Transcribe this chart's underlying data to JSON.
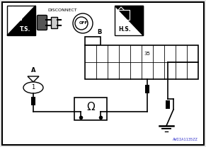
{
  "bg_color": "#e8e8e8",
  "white": "#ffffff",
  "black": "#000000",
  "gray": "#999999",
  "title_code": "AWIIA1135ZZ",
  "ts_label": "T.S.",
  "hs_label": "H.S.",
  "disconnect_label": "DISCONNECT",
  "off_label": "OFF",
  "connector_pin_label": "35",
  "connector_header": "B",
  "sensor_label": "A",
  "sensor_pin": "1",
  "omega_symbol": "Ω",
  "fig_w": 2.91,
  "fig_h": 2.08,
  "dpi": 100
}
